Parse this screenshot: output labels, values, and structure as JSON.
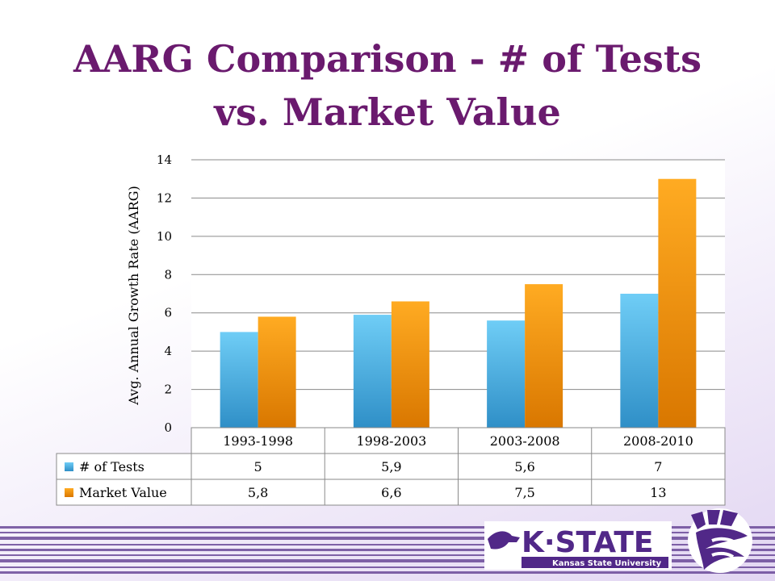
{
  "title": {
    "line1": "AARG Comparison - # of Tests",
    "line2": "vs. Market Value"
  },
  "chart_data": {
    "type": "bar",
    "categories": [
      "1993-1998",
      "1998-2003",
      "2003-2008",
      "2008-2010"
    ],
    "series": [
      {
        "name": "# of Tests",
        "values": [
          5,
          5.9,
          5.6,
          7
        ],
        "labels": [
          "5",
          "5,9",
          "5,6",
          "7"
        ],
        "color": "#4fb8e8",
        "color_dark": "#2f8fc7"
      },
      {
        "name": "Market Value",
        "values": [
          5.8,
          6.6,
          7.5,
          13
        ],
        "labels": [
          "5,8",
          "6,6",
          "7,5",
          "13"
        ],
        "color": "#ffa31a",
        "color_dark": "#d97700"
      }
    ],
    "ylabel": "Avg. Annual Growth Rate (AARG)",
    "xlabel": "",
    "ylim": [
      0,
      14
    ],
    "yticks": [
      "0",
      "2",
      "4",
      "6",
      "8",
      "10",
      "12",
      "14"
    ],
    "grid": true,
    "legend": "data-table"
  },
  "logos": {
    "kstate_text": "K·STATE",
    "kstate_subtext": "Kansas State University"
  },
  "colors": {
    "title": "#6a1a6e",
    "brand_purple": "#512888"
  }
}
